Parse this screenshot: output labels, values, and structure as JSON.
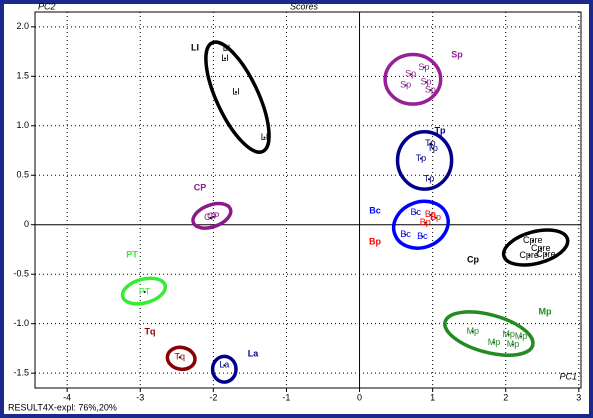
{
  "chart_data": {
    "type": "scatter",
    "title": "Scores",
    "y_label": "PC2",
    "x_label": "PC1",
    "footer": "RESULT4X-expl: 76%,20%",
    "xlim": [
      -4.44,
      3.03
    ],
    "ylim": [
      -1.65,
      2.15
    ],
    "xticks": [
      -4,
      -3,
      -2,
      -1,
      0,
      1,
      2,
      3
    ],
    "yticks": [
      {
        "value": 2,
        "label": "2.0"
      },
      1.5,
      {
        "value": 1,
        "label": "1.0"
      },
      0.5,
      0,
      -0.5,
      {
        "value": -1,
        "label": "-1.0"
      },
      -1.5
    ],
    "grid": true,
    "series": [
      {
        "name": "LI",
        "point_label": "LI",
        "color": "#000000",
        "x": [
          -1.82,
          -1.84,
          -1.69,
          -1.3
        ],
        "values": [
          1.78,
          1.68,
          1.34,
          0.88
        ],
        "ellipse": {
          "cx": -1.67,
          "cy": 1.29,
          "rx": 0.82,
          "ry": 0.21,
          "angle": 65
        }
      },
      {
        "name": "Sp",
        "point_label": "Sp",
        "color": "#962096",
        "x": [
          0.88,
          0.7,
          0.91,
          0.63,
          0.97
        ],
        "values": [
          1.59,
          1.52,
          1.44,
          1.41,
          1.36
        ],
        "ellipse": {
          "cx": 0.73,
          "cy": 1.47,
          "rx": 0.38,
          "ry": 0.25,
          "angle": 0
        }
      },
      {
        "name": "Tp",
        "point_label": "Tp",
        "color": "#00008b",
        "x": [
          0.97,
          0.84,
          1.0,
          0.95
        ],
        "values": [
          0.82,
          0.67,
          0.77,
          0.46
        ],
        "ellipse": {
          "cx": 0.89,
          "cy": 0.65,
          "rx": 0.37,
          "ry": 0.29,
          "angle": 0
        }
      },
      {
        "name": "Bc",
        "point_label": "Bc",
        "color": "#0000ff",
        "x": [
          0.77,
          0.63,
          0.86
        ],
        "values": [
          0.12,
          -0.1,
          -0.12
        ],
        "ellipse": {
          "cx": 0.84,
          "cy": 0,
          "rx": 0.38,
          "ry": 0.23,
          "angle": -20
        }
      },
      {
        "name": "Bp",
        "point_label": "Bp",
        "color": "#ff0000",
        "x": [
          0.97,
          0.9,
          1.04
        ],
        "values": [
          0.1,
          0.02,
          0.07
        ]
      },
      {
        "name": "Cp",
        "point_label": "Cpre",
        "color": "#000000",
        "x": [
          2.37,
          2.48,
          2.32,
          2.55
        ],
        "values": [
          -0.16,
          -0.24,
          -0.31,
          -0.3
        ],
        "ellipse": {
          "cx": 2.41,
          "cy": -0.23,
          "rx": 0.45,
          "ry": 0.16,
          "angle": -15
        }
      },
      {
        "name": "Mp",
        "point_label": "Mp",
        "color": "#228b22",
        "x": [
          1.55,
          1.84,
          2.04,
          2.1,
          2.21
        ],
        "values": [
          -1.08,
          -1.19,
          -1.11,
          -1.21,
          -1.13
        ],
        "ellipse": {
          "cx": 1.77,
          "cy": -1.1,
          "rx": 0.62,
          "ry": 0.19,
          "angle": 15
        }
      },
      {
        "name": "CP",
        "point_label": "CP",
        "color": "#8b1a8b",
        "x": [
          -2.0,
          -2.04
        ],
        "values": [
          0.08,
          0.07
        ],
        "ellipse": {
          "cx": -2.02,
          "cy": 0.09,
          "rx": 0.27,
          "ry": 0.11,
          "angle": -20
        }
      },
      {
        "name": "PT",
        "point_label": "PT",
        "color": "#33ee33",
        "x": [
          -2.94
        ],
        "values": [
          -0.68
        ],
        "ellipse": {
          "cx": -2.95,
          "cy": -0.67,
          "rx": 0.3,
          "ry": 0.12,
          "angle": -15
        }
      },
      {
        "name": "Tq",
        "point_label": "Tq",
        "color": "#8b0000",
        "x": [
          -2.46
        ],
        "values": [
          -1.34
        ],
        "ellipse": {
          "cx": -2.44,
          "cy": -1.35,
          "rx": 0.19,
          "ry": 0.11,
          "angle": 10
        }
      },
      {
        "name": "La",
        "point_label": "La",
        "color": "#00008b",
        "x": [
          -1.85
        ],
        "values": [
          -1.42
        ],
        "ellipse": {
          "cx": -1.85,
          "cy": -1.46,
          "rx": 0.16,
          "ry": 0.13,
          "angle": 0
        }
      }
    ]
  }
}
